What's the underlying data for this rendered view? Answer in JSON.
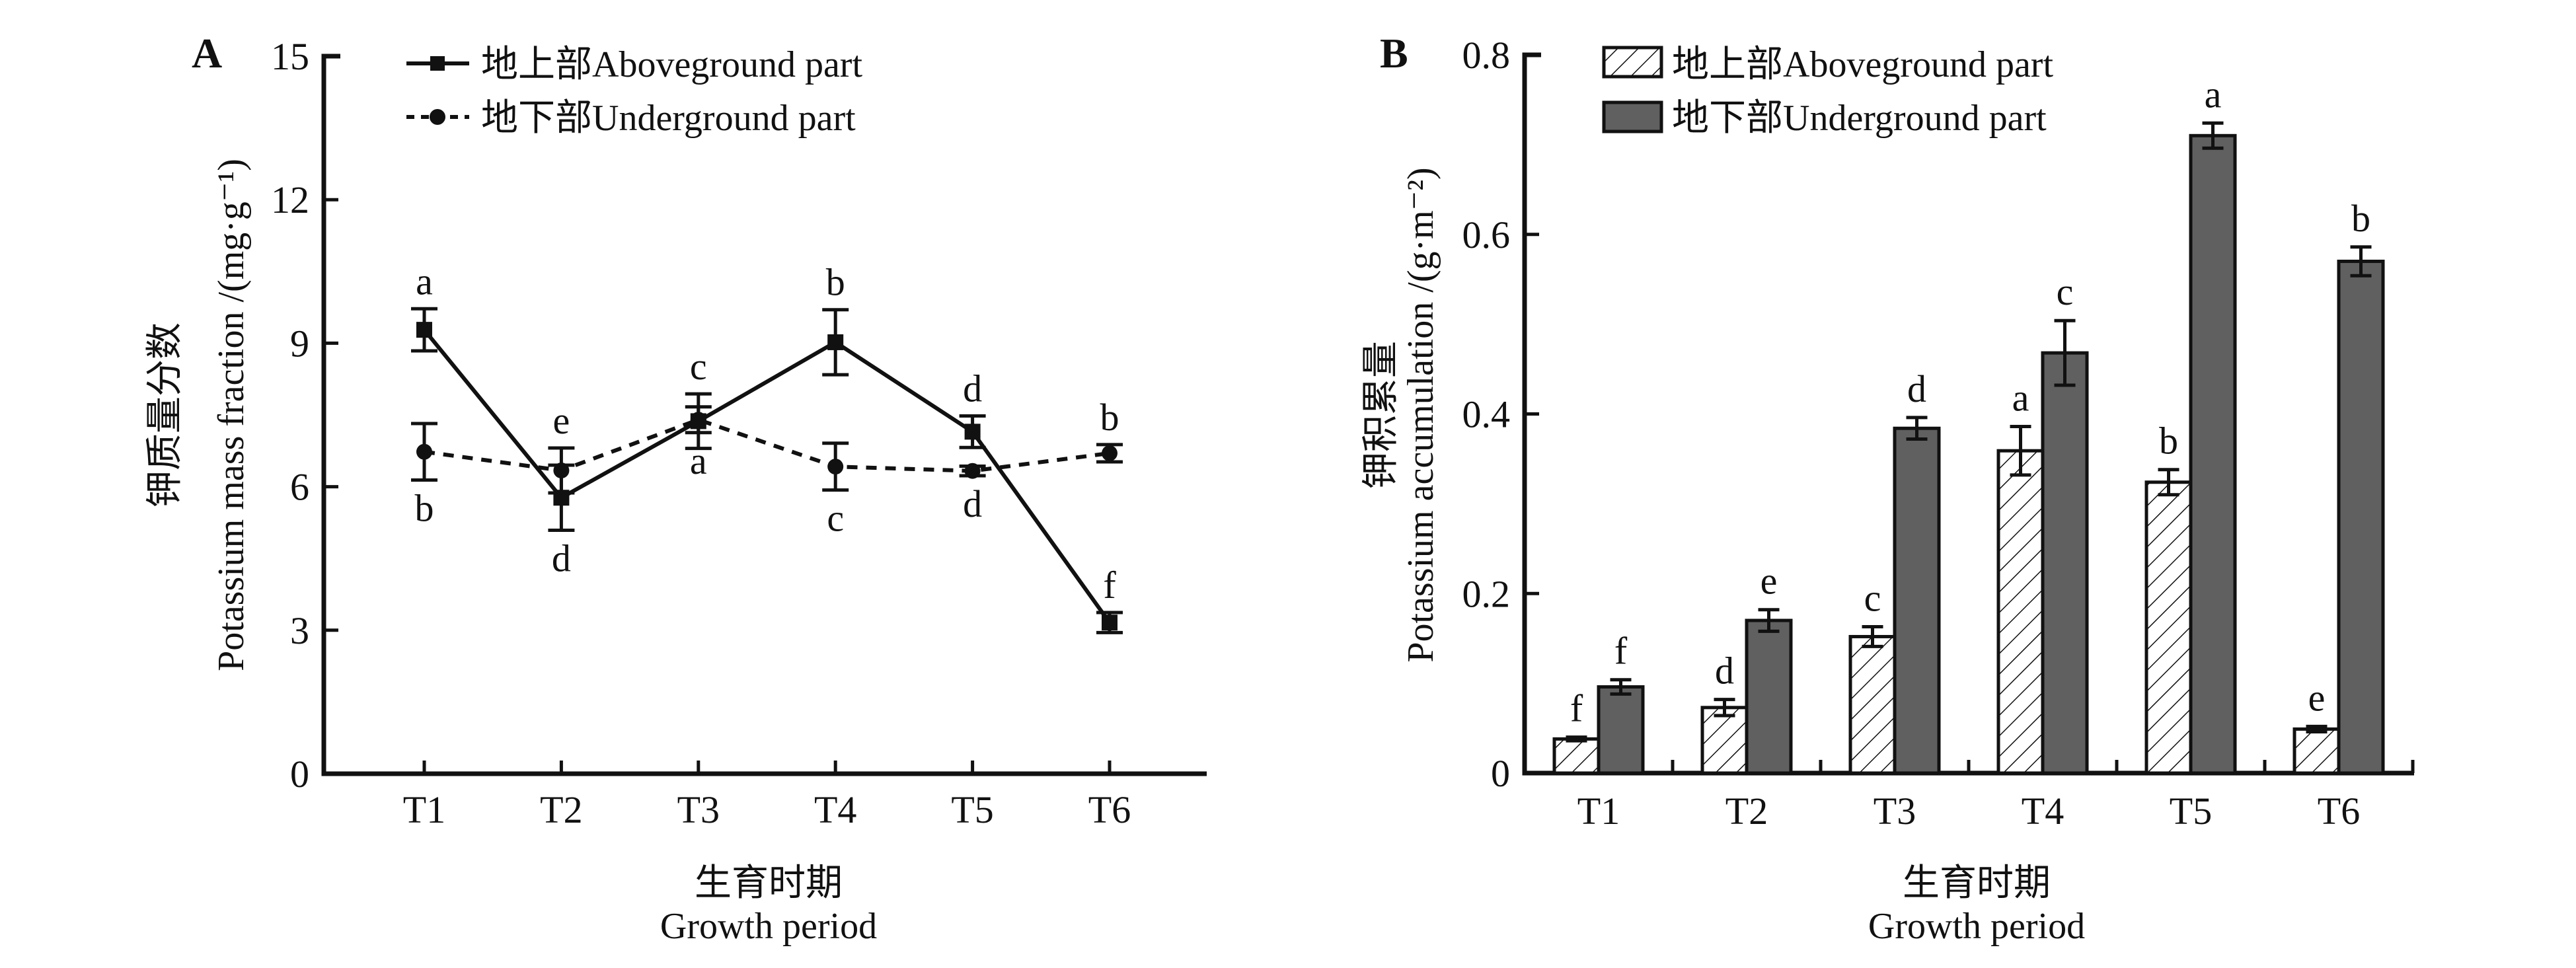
{
  "figure": {
    "panels": [
      "A",
      "B"
    ]
  },
  "chart_data": [
    {
      "id": "A",
      "type": "line",
      "panel_label": "A",
      "title": "",
      "categories": [
        "T1",
        "T2",
        "T3",
        "T4",
        "T5",
        "T6"
      ],
      "xlabel_cn": "生育时期",
      "xlabel_en": "Growth period",
      "ylabel_cn": "钾质量分数",
      "ylabel_en": "Potassium mass fraction /(mg·g⁻¹)",
      "ylim": [
        0,
        15
      ],
      "yticks": [
        0,
        3,
        6,
        9,
        12,
        15
      ],
      "ytick_labels": [
        "0",
        "3",
        "6",
        "9",
        "12",
        "15"
      ],
      "grid": false,
      "legend_position": "top-left",
      "series": [
        {
          "name": "地上部Aboveground part",
          "style": "solid",
          "marker": "square",
          "values": [
            9.28,
            5.77,
            7.37,
            9.02,
            7.15,
            3.16
          ],
          "errors": [
            0.44,
            0.68,
            0.57,
            0.68,
            0.33,
            0.21
          ],
          "letters": [
            "a",
            "d",
            "c",
            "b",
            "d",
            "f"
          ],
          "letter_side": [
            "above",
            "below",
            "above",
            "above",
            "above",
            "above"
          ]
        },
        {
          "name": "地下部Underground part",
          "style": "dashed",
          "marker": "circle",
          "values": [
            6.73,
            6.34,
            7.4,
            6.42,
            6.33,
            6.7
          ],
          "errors": [
            0.59,
            0.47,
            0.27,
            0.49,
            0.1,
            0.18
          ],
          "letters": [
            "b",
            "e",
            "a",
            "c",
            "d",
            "b"
          ],
          "letter_side": [
            "below",
            "above",
            "below",
            "below",
            "below",
            "above"
          ]
        }
      ]
    },
    {
      "id": "B",
      "type": "bar",
      "panel_label": "B",
      "title": "",
      "categories": [
        "T1",
        "T2",
        "T3",
        "T4",
        "T5",
        "T6"
      ],
      "xlabel_cn": "生育时期",
      "xlabel_en": "Growth period",
      "ylabel_cn": "钾积累量",
      "ylabel_en": "Potassium accumulation /(g·m⁻²)",
      "ylim": [
        0,
        0.8
      ],
      "yticks": [
        0,
        0.2,
        0.4,
        0.6,
        0.8
      ],
      "ytick_labels": [
        "0",
        "0.2",
        "0.4",
        "0.6",
        "0.8"
      ],
      "grid": false,
      "legend_position": "top-left",
      "series": [
        {
          "name": "地上部Aboveground part",
          "fill": "hatched",
          "color": "#ffffff",
          "values": [
            0.038,
            0.073,
            0.152,
            0.359,
            0.324,
            0.049
          ],
          "errors": [
            0.002,
            0.009,
            0.011,
            0.027,
            0.014,
            0.003
          ],
          "letters": [
            "f",
            "d",
            "c",
            "a",
            "b",
            "e"
          ]
        },
        {
          "name": "地下部Underground part",
          "fill": "solid",
          "color": "#606060",
          "values": [
            0.096,
            0.17,
            0.384,
            0.468,
            0.71,
            0.57
          ],
          "errors": [
            0.008,
            0.012,
            0.012,
            0.036,
            0.014,
            0.016
          ],
          "letters": [
            "f",
            "e",
            "d",
            "c",
            "a",
            "b"
          ]
        }
      ]
    }
  ]
}
